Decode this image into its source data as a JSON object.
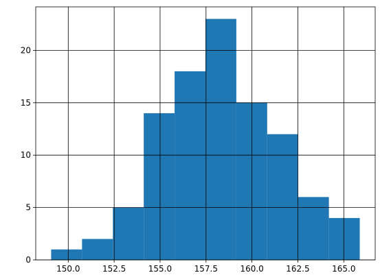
{
  "chart_data": {
    "type": "bar",
    "subtype": "histogram",
    "bins": [
      {
        "start": 149.07,
        "end": 150.75,
        "count": 1
      },
      {
        "start": 150.75,
        "end": 152.43,
        "count": 2
      },
      {
        "start": 152.43,
        "end": 154.11,
        "count": 5
      },
      {
        "start": 154.11,
        "end": 155.79,
        "count": 14
      },
      {
        "start": 155.79,
        "end": 157.47,
        "count": 18
      },
      {
        "start": 157.47,
        "end": 159.15,
        "count": 23
      },
      {
        "start": 159.15,
        "end": 160.83,
        "count": 15
      },
      {
        "start": 160.83,
        "end": 162.51,
        "count": 12
      },
      {
        "start": 162.51,
        "end": 164.19,
        "count": 6
      },
      {
        "start": 164.19,
        "end": 165.87,
        "count": 4
      }
    ],
    "xlim": [
      148.23,
      166.71
    ],
    "ylim": [
      0,
      24.15
    ],
    "xticks": [
      150.0,
      152.5,
      155.0,
      157.5,
      160.0,
      162.5,
      165.0
    ],
    "xtick_labels": [
      "150.0",
      "152.5",
      "155.0",
      "157.5",
      "160.0",
      "162.5",
      "165.0"
    ],
    "yticks": [
      0,
      5,
      10,
      15,
      20
    ],
    "ytick_labels": [
      "0",
      "5",
      "10",
      "15",
      "20"
    ],
    "grid": true,
    "bar_color": "#1f77b4",
    "title": "",
    "xlabel": "",
    "ylabel": ""
  }
}
